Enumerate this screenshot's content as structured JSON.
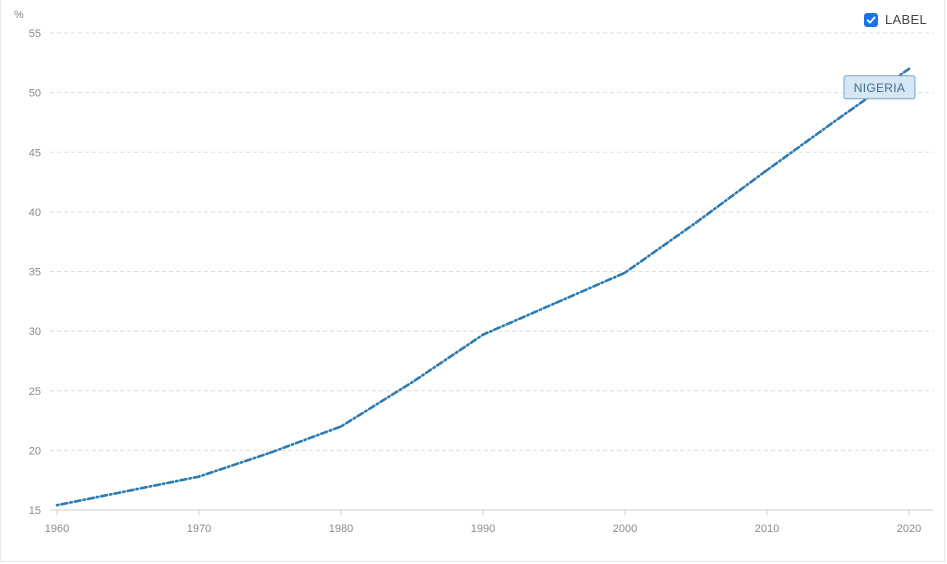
{
  "controls": {
    "label_toggle_text": "LABEL",
    "label_checked": true
  },
  "colors": {
    "series_line": "#2e7bb4",
    "grid": "#dddddd",
    "axis": "#cccccc",
    "tag_fill": "#d6e6f2",
    "tag_border": "#7aa6c8",
    "checkbox": "#1a73e8"
  },
  "chart_data": {
    "type": "line",
    "title": "",
    "xlabel": "",
    "ylabel": "%",
    "xlim": [
      1960,
      2020
    ],
    "ylim": [
      15,
      55
    ],
    "x_ticks": [
      "1960",
      "1970",
      "1980",
      "1990",
      "2000",
      "2010",
      "2020"
    ],
    "y_ticks": [
      "15",
      "20",
      "25",
      "30",
      "35",
      "40",
      "45",
      "50",
      "55"
    ],
    "grid": true,
    "line_style": "dash-dot",
    "series": [
      {
        "name": "NIGERIA",
        "x": [
          1960,
          1965,
          1970,
          1975,
          1980,
          1985,
          1990,
          1995,
          2000,
          2005,
          2010,
          2015,
          2020
        ],
        "values": [
          15.4,
          16.6,
          17.8,
          19.8,
          22.0,
          25.7,
          29.7,
          32.3,
          34.9,
          39.1,
          43.5,
          47.8,
          52.0
        ]
      }
    ]
  }
}
